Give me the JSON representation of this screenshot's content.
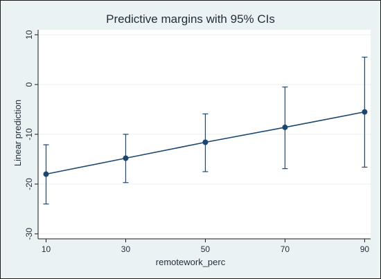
{
  "chart_data": {
    "type": "line",
    "title": "Predictive margins with 95% CIs",
    "xlabel": "remotework_perc",
    "ylabel": "Linear prediction",
    "x": [
      10,
      30,
      50,
      70,
      90
    ],
    "series": [
      {
        "values": [
          -18.0,
          -14.8,
          -11.6,
          -8.6,
          -5.5
        ],
        "ci_lower": [
          -24.0,
          -19.7,
          -17.5,
          -16.9,
          -16.6
        ],
        "ci_upper": [
          -12.1,
          -10.0,
          -5.9,
          -0.5,
          5.5
        ]
      }
    ],
    "xticks": [
      10,
      30,
      50,
      70,
      90
    ],
    "yticks": [
      -30,
      -20,
      -10,
      0,
      10
    ],
    "xlim": [
      8,
      91.5
    ],
    "ylim": [
      -31,
      11
    ],
    "grid": true,
    "colors": {
      "background": "#eaf2f3",
      "plot_area": "#ffffff",
      "series": "#1a476f",
      "grid": "#eaf2f3"
    }
  }
}
